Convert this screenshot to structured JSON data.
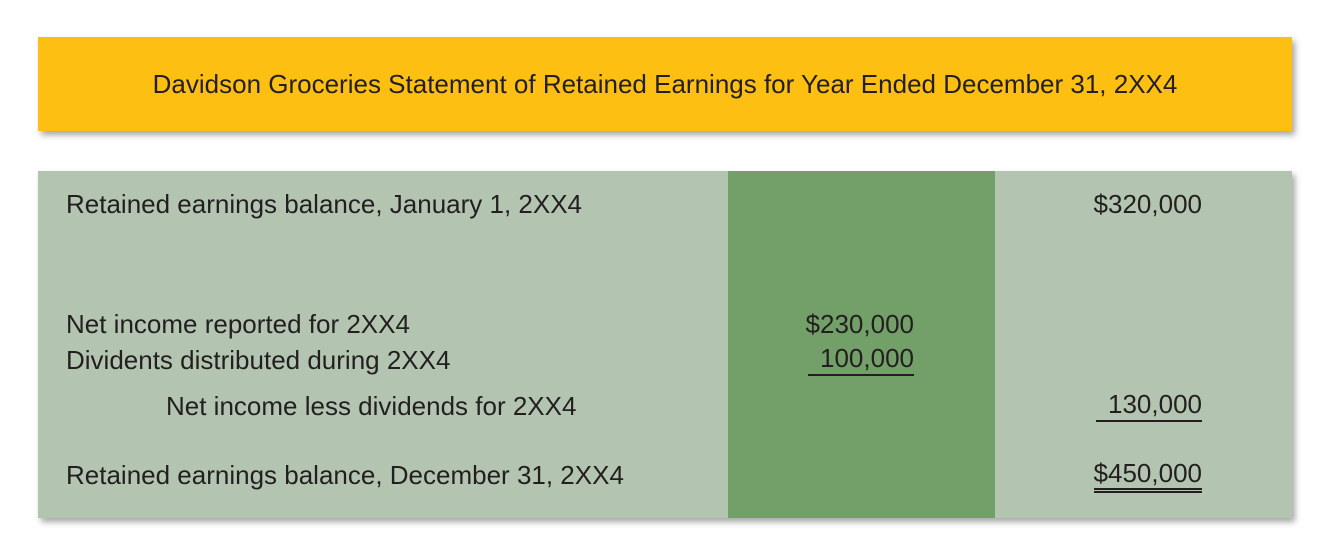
{
  "title": "Davidson Groceries Statement of Retained Earnings for Year Ended December 31, 2XX4",
  "rows": [
    {
      "label": "Retained earnings balance, January 1, 2XX4",
      "mid": "",
      "right": "$320,000"
    },
    {
      "label": "Net income reported for 2XX4",
      "mid": "$230,000",
      "right": ""
    },
    {
      "label": "Dividents distributed during 2XX4",
      "mid": "100,000",
      "right": ""
    },
    {
      "label": "Net income less dividends for 2XX4",
      "mid": "",
      "right": "130,000"
    },
    {
      "label": "Retained earnings balance, December 31, 2XX4",
      "mid": "",
      "right": "$450,000"
    }
  ],
  "colors": {
    "title_background": "#fdbf12",
    "statement_background": "#b3c5b1",
    "middle_column": "#739f68"
  }
}
